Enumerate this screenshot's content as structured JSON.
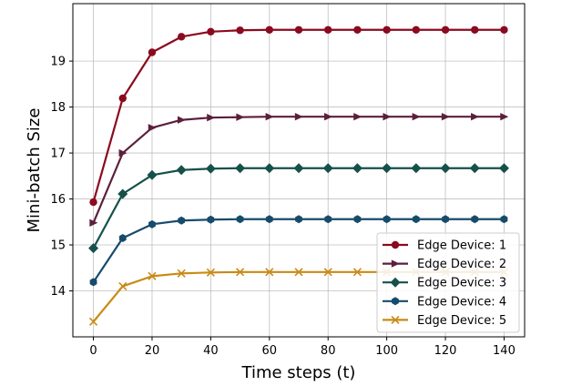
{
  "chart_data": {
    "type": "line",
    "title": "",
    "xlabel": "Time steps (t)",
    "ylabel": "Mini-batch Size",
    "xlim": [
      -7,
      147
    ],
    "ylim": [
      13.0,
      20.25
    ],
    "x_ticks": [
      0,
      20,
      40,
      60,
      80,
      100,
      120,
      140
    ],
    "y_ticks": [
      14,
      15,
      16,
      17,
      18,
      19
    ],
    "grid": true,
    "legend_position": "lower-right",
    "x": [
      0,
      10,
      20,
      30,
      40,
      50,
      60,
      70,
      80,
      90,
      100,
      110,
      120,
      130,
      140
    ],
    "series": [
      {
        "name": "Edge Device: 1",
        "color": "#8b0a1e",
        "marker": "circle",
        "values": [
          15.93,
          18.19,
          19.19,
          19.53,
          19.64,
          19.67,
          19.68,
          19.68,
          19.68,
          19.68,
          19.68,
          19.68,
          19.68,
          19.68,
          19.68
        ]
      },
      {
        "name": "Edge Device: 2",
        "color": "#5c1f3d",
        "marker": "triangle-right",
        "values": [
          15.48,
          17.0,
          17.55,
          17.72,
          17.77,
          17.78,
          17.79,
          17.79,
          17.79,
          17.79,
          17.79,
          17.79,
          17.79,
          17.79,
          17.79
        ]
      },
      {
        "name": "Edge Device: 3",
        "color": "#15514a",
        "marker": "diamond",
        "values": [
          14.93,
          16.11,
          16.52,
          16.63,
          16.66,
          16.67,
          16.67,
          16.67,
          16.67,
          16.67,
          16.67,
          16.67,
          16.67,
          16.67,
          16.67
        ]
      },
      {
        "name": "Edge Device: 4",
        "color": "#174b6b",
        "marker": "hexagon",
        "values": [
          14.19,
          15.15,
          15.45,
          15.53,
          15.55,
          15.56,
          15.56,
          15.56,
          15.56,
          15.56,
          15.56,
          15.56,
          15.56,
          15.56,
          15.56
        ]
      },
      {
        "name": "Edge Device: 5",
        "color": "#c98a14",
        "marker": "x",
        "values": [
          13.33,
          14.1,
          14.32,
          14.38,
          14.4,
          14.41,
          14.41,
          14.41,
          14.41,
          14.41,
          14.41,
          14.41,
          14.41,
          14.41,
          14.41
        ]
      }
    ]
  }
}
